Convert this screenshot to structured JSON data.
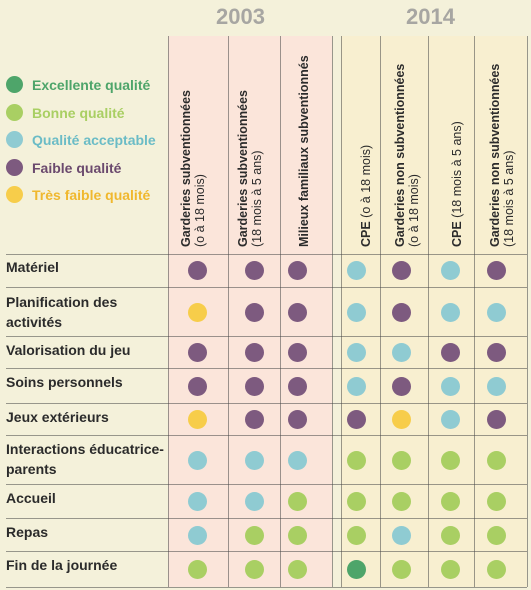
{
  "years": [
    "2003",
    "2014"
  ],
  "legend": [
    {
      "label": "Excellente qualité",
      "color": "#4ea56a",
      "text_color": "#4ea56a"
    },
    {
      "label": "Bonne qualité",
      "color": "#a9cf63",
      "text_color": "#a9cf63"
    },
    {
      "label": "Qualité acceptable",
      "color": "#8fcbd2",
      "text_color": "#6bbcc6"
    },
    {
      "label": "Faible qualité",
      "color": "#7d5a7f",
      "text_color": "#6b4a6e"
    },
    {
      "label": "Très faible qualité",
      "color": "#f7cd4a",
      "text_color": "#f0b82e"
    }
  ],
  "columns": [
    {
      "bold": "Garderies subventionnées",
      "normal": "(o à 18 mois)"
    },
    {
      "bold": "Garderies subventionnées",
      "normal": "(18 mois à 5 ans)"
    },
    {
      "bold": "Milieux familiaux subventionnés",
      "normal": ""
    },
    {
      "bold": "CPE",
      "normal": "(o à 18 mois)"
    },
    {
      "bold": "Garderies non subventionnées",
      "normal": "(o à 18 mois)"
    },
    {
      "bold": "CPE",
      "normal": "(18 mois à 5 ans)"
    },
    {
      "bold": "Garderies non subventionnées",
      "normal": "(18 mois à 5 ans)"
    }
  ],
  "chart_data": {
    "type": "table",
    "column_groups": [
      {
        "year": "2003",
        "columns": [
          0,
          1,
          2
        ]
      },
      {
        "year": "2014",
        "columns": [
          3,
          4,
          5,
          6
        ]
      }
    ],
    "scale": [
      "Excellente qualité",
      "Bonne qualité",
      "Qualité acceptable",
      "Faible qualité",
      "Très faible qualité"
    ],
    "rows": [
      {
        "label": "Matériel",
        "values": [
          "Faible qualité",
          "Faible qualité",
          "Faible qualité",
          "Qualité acceptable",
          "Faible qualité",
          "Qualité acceptable",
          "Faible qualité"
        ]
      },
      {
        "label": "Planification des activités",
        "values": [
          "Très faible qualité",
          "Faible qualité",
          "Faible qualité",
          "Qualité acceptable",
          "Faible qualité",
          "Qualité acceptable",
          "Qualité acceptable"
        ]
      },
      {
        "label": "Valorisation du jeu",
        "values": [
          "Faible qualité",
          "Faible qualité",
          "Faible qualité",
          "Qualité acceptable",
          "Qualité acceptable",
          "Faible qualité",
          "Faible qualité"
        ]
      },
      {
        "label": "Soins personnels",
        "values": [
          "Faible qualité",
          "Faible qualité",
          "Faible qualité",
          "Qualité acceptable",
          "Faible qualité",
          "Qualité acceptable",
          "Qualité acceptable"
        ]
      },
      {
        "label": "Jeux extérieurs",
        "values": [
          "Très faible qualité",
          "Faible qualité",
          "Faible qualité",
          "Faible qualité",
          "Très faible qualité",
          "Qualité acceptable",
          "Faible qualité"
        ]
      },
      {
        "label": "Interactions éducatrice-parents",
        "values": [
          "Qualité acceptable",
          "Qualité acceptable",
          "Qualité acceptable",
          "Bonne qualité",
          "Bonne qualité",
          "Bonne qualité",
          "Bonne qualité"
        ]
      },
      {
        "label": "Accueil",
        "values": [
          "Qualité acceptable",
          "Qualité acceptable",
          "Bonne qualité",
          "Bonne qualité",
          "Bonne qualité",
          "Bonne qualité",
          "Bonne qualité"
        ]
      },
      {
        "label": "Repas",
        "values": [
          "Qualité acceptable",
          "Bonne qualité",
          "Bonne qualité",
          "Bonne qualité",
          "Qualité acceptable",
          "Bonne qualité",
          "Bonne qualité"
        ]
      },
      {
        "label": "Fin de la journée",
        "values": [
          "Bonne qualité",
          "Bonne qualité",
          "Bonne qualité",
          "Excellente qualité",
          "Bonne qualité",
          "Bonne qualité",
          "Bonne qualité"
        ]
      }
    ]
  }
}
